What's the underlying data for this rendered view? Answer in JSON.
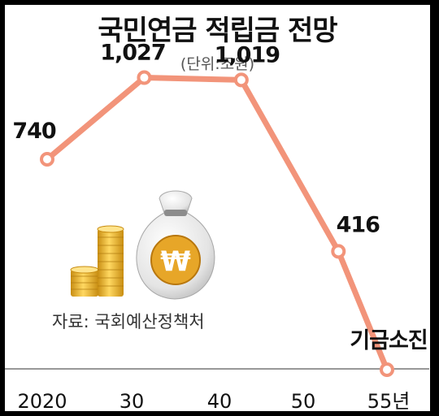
{
  "header": {
    "title": "국민연금 적립금 전망",
    "unit": "(단위:조원)"
  },
  "source": "자료: 국회예산정책처",
  "chart_data": {
    "type": "line",
    "title": "국민연금 적립금 전망",
    "unit": "(단위:조원)",
    "x": [
      "2020",
      "30",
      "40",
      "50",
      "55년"
    ],
    "years": [
      2020,
      2030,
      2040,
      2050,
      2055
    ],
    "values": [
      740,
      1027,
      1019,
      416,
      0
    ],
    "data_labels": [
      "740",
      "1,027",
      "1,019",
      "416",
      "기금소진"
    ],
    "ylim": [
      0,
      1100
    ],
    "grid": false,
    "line_color": "#f2947a",
    "marker_fill": "#ffffff"
  },
  "illustration": {
    "coin-icon": "gold-coins-icon",
    "bag-icon": "money-bag-icon",
    "bag_symbol": "₩"
  }
}
